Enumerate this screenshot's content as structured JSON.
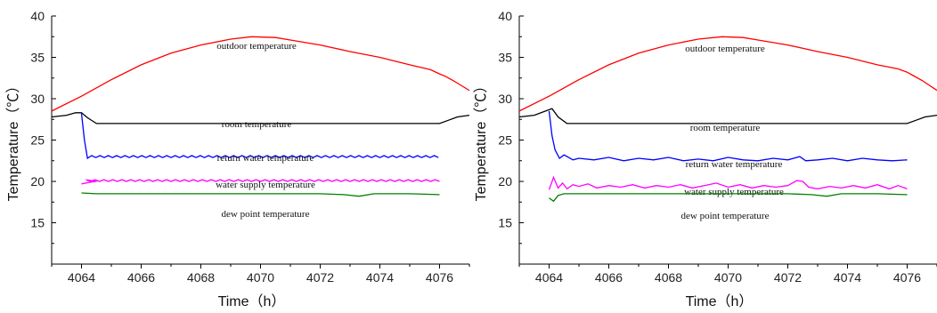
{
  "chart_data": [
    {
      "type": "line",
      "xlabel": "Time（h）",
      "ylabel": "Temperature（℃）",
      "xlim": [
        4063,
        4077
      ],
      "ylim": [
        10,
        40
      ],
      "x_ticks": [
        4064,
        4066,
        4068,
        4070,
        4072,
        4074,
        4076
      ],
      "y_ticks": [
        15,
        20,
        25,
        30,
        35,
        40
      ],
      "grid": false,
      "series": [
        {
          "name": "outdoor temperature",
          "color": "#ff0000",
          "x": [
            4063,
            4064,
            4065,
            4066,
            4067,
            4068,
            4069,
            4069.7,
            4070.5,
            4071,
            4072,
            4073,
            4074,
            4075,
            4075.7,
            4076,
            4076.2,
            4076.5,
            4077
          ],
          "y": [
            28.5,
            30.3,
            32.3,
            34.1,
            35.5,
            36.5,
            37.2,
            37.5,
            37.4,
            37.1,
            36.5,
            35.7,
            35.0,
            34.1,
            33.5,
            33.0,
            32.7,
            32.1,
            31.0
          ]
        },
        {
          "name": "room temperature",
          "color": "#000000",
          "x": [
            4063,
            4063.5,
            4063.8,
            4064,
            4064.2,
            4064.5,
            4065,
            4068,
            4072,
            4076,
            4076.3,
            4076.6,
            4077
          ],
          "y": [
            27.8,
            28.0,
            28.3,
            28.3,
            27.7,
            27.0,
            27.0,
            27.0,
            27.0,
            27.0,
            27.4,
            27.8,
            28.0
          ]
        },
        {
          "name": "return water temperature",
          "color": "#0000ff",
          "x_start": 4064.2,
          "x_end": 4076,
          "base": 23.0,
          "amp": 0.12,
          "period": 0.28,
          "x": [
            4064,
            4064.1,
            4064.2
          ],
          "y": [
            28.2,
            25.0,
            22.8
          ]
        },
        {
          "name": "water supply temperature",
          "color": "#ff00ff",
          "x_start": 4064,
          "x_end": 4076,
          "base": 20.1,
          "amp": 0.1,
          "period": 0.3,
          "x": [
            4064,
            4064.3,
            4064.5
          ],
          "y": [
            19.7,
            19.9,
            20.0
          ]
        },
        {
          "name": "dew point temperature",
          "color": "#008000",
          "x": [
            4064,
            4064.5,
            4066,
            4068,
            4070,
            4072,
            4072.8,
            4073.3,
            4073.8,
            4075,
            4076
          ],
          "y": [
            18.6,
            18.5,
            18.5,
            18.5,
            18.5,
            18.5,
            18.4,
            18.2,
            18.5,
            18.5,
            18.4
          ]
        }
      ]
    },
    {
      "type": "line",
      "xlabel": "Time（h）",
      "ylabel": "Temperature（℃）",
      "xlim": [
        4063,
        4077
      ],
      "ylim": [
        10,
        40
      ],
      "x_ticks": [
        4064,
        4066,
        4068,
        4070,
        4072,
        4074,
        4076
      ],
      "y_ticks": [
        15,
        20,
        25,
        30,
        35,
        40
      ],
      "grid": false,
      "series": [
        {
          "name": "outdoor temperature",
          "color": "#ff0000",
          "x": [
            4063,
            4064,
            4065,
            4066,
            4067,
            4068,
            4069,
            4069.8,
            4070.5,
            4071,
            4072,
            4073,
            4074,
            4075,
            4075.7,
            4076,
            4076.2,
            4076.5,
            4077
          ],
          "y": [
            28.5,
            30.3,
            32.3,
            34.1,
            35.5,
            36.5,
            37.2,
            37.5,
            37.4,
            37.1,
            36.5,
            35.7,
            35.0,
            34.1,
            33.6,
            33.2,
            32.8,
            32.2,
            31.0
          ]
        },
        {
          "name": "room temperature",
          "color": "#000000",
          "x": [
            4063,
            4063.5,
            4063.8,
            4064.1,
            4064.3,
            4064.6,
            4065,
            4068,
            4072,
            4076,
            4076.3,
            4076.6,
            4077
          ],
          "y": [
            27.8,
            28.0,
            28.4,
            28.8,
            27.8,
            27.0,
            27.0,
            27.0,
            27.0,
            27.0,
            27.4,
            27.8,
            28.0
          ]
        },
        {
          "name": "return water temperature",
          "color": "#0000ff",
          "x": [
            4064,
            4064.1,
            4064.2,
            4064.35,
            4064.5,
            4064.8,
            4065,
            4065.5,
            4066,
            4066.5,
            4067,
            4067.5,
            4068,
            4068.5,
            4069,
            4069.5,
            4070,
            4070.5,
            4071,
            4071.5,
            4072,
            4072.4,
            4072.6,
            4073,
            4073.5,
            4074,
            4074.5,
            4075,
            4075.5,
            4076
          ],
          "y": [
            28.5,
            25.5,
            23.8,
            22.8,
            23.2,
            22.6,
            22.8,
            22.6,
            22.9,
            22.5,
            22.8,
            22.6,
            22.9,
            22.5,
            22.7,
            22.5,
            22.9,
            22.6,
            22.5,
            22.8,
            22.6,
            23.0,
            22.5,
            22.6,
            22.8,
            22.5,
            22.8,
            22.6,
            22.5,
            22.6
          ]
        },
        {
          "name": "water supply temperature",
          "color": "#ff00ff",
          "x": [
            4064,
            4064.15,
            4064.3,
            4064.45,
            4064.6,
            4064.8,
            4065,
            4065.3,
            4065.6,
            4066,
            4066.4,
            4066.8,
            4067.2,
            4067.6,
            4068,
            4068.4,
            4068.8,
            4069.2,
            4069.6,
            4070,
            4070.4,
            4070.8,
            4071.2,
            4071.6,
            4072,
            4072.3,
            4072.5,
            4072.7,
            4073,
            4073.4,
            4073.8,
            4074.2,
            4074.6,
            4075,
            4075.4,
            4075.7,
            4076
          ],
          "y": [
            19.0,
            20.5,
            19.2,
            19.8,
            19.1,
            19.6,
            19.4,
            19.7,
            19.2,
            19.5,
            19.3,
            19.6,
            19.2,
            19.5,
            19.3,
            19.6,
            19.2,
            19.5,
            19.8,
            19.3,
            19.6,
            19.2,
            19.5,
            19.3,
            19.5,
            20.1,
            20.0,
            19.3,
            19.1,
            19.4,
            19.2,
            19.5,
            19.2,
            19.6,
            19.1,
            19.5,
            19.1
          ]
        },
        {
          "name": "dew point temperature",
          "color": "#008000",
          "x": [
            4064,
            4064.15,
            4064.3,
            4064.5,
            4066,
            4068,
            4070,
            4072,
            4072.8,
            4073.3,
            4073.8,
            4075,
            4076
          ],
          "y": [
            18.0,
            17.6,
            18.3,
            18.5,
            18.5,
            18.5,
            18.5,
            18.5,
            18.4,
            18.2,
            18.5,
            18.5,
            18.4
          ]
        }
      ]
    }
  ]
}
